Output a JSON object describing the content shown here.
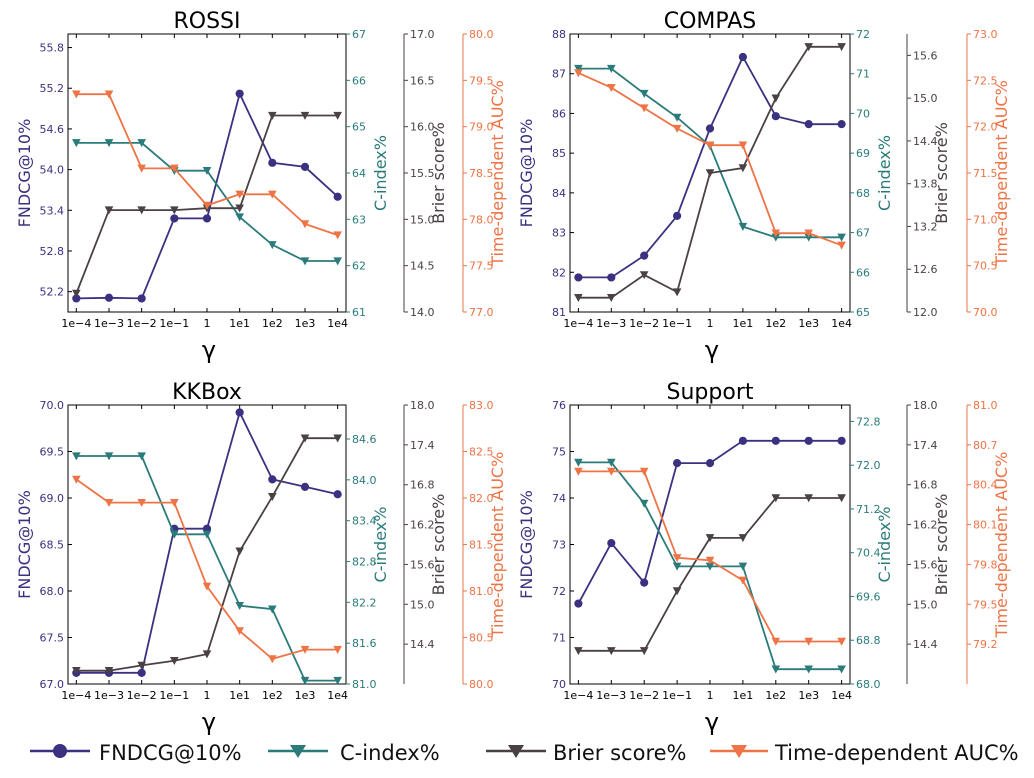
{
  "colors": {
    "fndcg": "#3a3181",
    "cindex": "#2a7b7a",
    "brier": "#4a4144",
    "auc": "#ee7345"
  },
  "legend": {
    "fndcg": "FNDCG@10%",
    "cindex": "C-index%",
    "brier": "Brier score%",
    "auc": "Time-dependent AUC%"
  },
  "chart_data": [
    {
      "type": "line",
      "title": "ROSSI",
      "xlabel": "γ",
      "x_ticks": [
        "1e−4",
        "1e−3",
        "1e−2",
        "1e−1",
        "1",
        "1e1",
        "1e2",
        "1e3",
        "1e4"
      ],
      "axes": [
        {
          "key": "fndcg",
          "label": "FNDCG@10%",
          "lim": [
            51.9,
            56.0
          ],
          "ticks": [
            52.2,
            52.8,
            53.4,
            54.0,
            54.6,
            55.2,
            55.8
          ],
          "tick_labels": [
            "52.2",
            "52.8",
            "53.4",
            "54.0",
            "54.6",
            "55.2",
            "55.8"
          ]
        },
        {
          "key": "cindex",
          "label": "C-index%",
          "lim": [
            61,
            67
          ],
          "ticks": [
            61,
            62,
            63,
            64,
            65,
            66,
            67
          ],
          "tick_labels": [
            "61",
            "62",
            "63",
            "64",
            "65",
            "66",
            "67"
          ]
        },
        {
          "key": "brier",
          "label": "Brier score%",
          "lim": [
            14.0,
            17.0
          ],
          "ticks": [
            14.0,
            14.5,
            15.0,
            15.5,
            16.0,
            16.5,
            17.0
          ],
          "tick_labels": [
            "14.0",
            "14.5",
            "15.0",
            "15.5",
            "16.0",
            "16.5",
            "17.0"
          ]
        },
        {
          "key": "auc",
          "label": "Time-dependent AUC%",
          "lim": [
            77.0,
            80.0
          ],
          "ticks": [
            77.0,
            77.5,
            78.0,
            78.5,
            79.0,
            79.5,
            80.0
          ],
          "tick_labels": [
            "77.0",
            "77.5",
            "78.0",
            "78.5",
            "79.0",
            "79.5",
            "80.0"
          ]
        }
      ],
      "series": [
        {
          "name": "FNDCG@10%",
          "key": "fndcg",
          "values": [
            52.1,
            52.11,
            52.1,
            53.28,
            53.28,
            55.12,
            54.1,
            54.04,
            53.6
          ]
        },
        {
          "name": "C-index%",
          "key": "cindex",
          "values": [
            64.65,
            64.65,
            64.65,
            64.05,
            64.05,
            63.05,
            62.45,
            62.1,
            62.1
          ]
        },
        {
          "name": "Brier score%",
          "key": "brier",
          "values": [
            14.2,
            15.1,
            15.1,
            15.1,
            15.12,
            15.12,
            16.12,
            16.12,
            16.12
          ]
        },
        {
          "name": "Time-dependent AUC%",
          "key": "auc",
          "values": [
            79.35,
            79.35,
            78.55,
            78.55,
            78.15,
            78.27,
            78.27,
            77.95,
            77.83
          ]
        }
      ]
    },
    {
      "type": "line",
      "title": "COMPAS",
      "xlabel": "γ",
      "x_ticks": [
        "1e−4",
        "1e−3",
        "1e−2",
        "1e−1",
        "1",
        "1e1",
        "1e2",
        "1e3",
        "1e4"
      ],
      "axes": [
        {
          "key": "fndcg",
          "label": "FNDCG@10%",
          "lim": [
            81,
            88
          ],
          "ticks": [
            81,
            82,
            83,
            84,
            85,
            86,
            87,
            88
          ],
          "tick_labels": [
            "81",
            "82",
            "83",
            "84",
            "85",
            "86",
            "87",
            "88"
          ]
        },
        {
          "key": "cindex",
          "label": "C-index%",
          "lim": [
            65,
            72
          ],
          "ticks": [
            65,
            66,
            67,
            68,
            69,
            70,
            71,
            72
          ],
          "tick_labels": [
            "65",
            "66",
            "67",
            "68",
            "69",
            "70",
            "71",
            "72"
          ]
        },
        {
          "key": "brier",
          "label": "Brier score%",
          "lim": [
            12.0,
            15.9
          ],
          "ticks": [
            12.0,
            12.6,
            13.2,
            13.8,
            14.4,
            15.0,
            15.6
          ],
          "tick_labels": [
            "12.0",
            "12.6",
            "13.2",
            "13.8",
            "14.4",
            "15.0",
            "15.6"
          ]
        },
        {
          "key": "auc",
          "label": "Time-dependent AUC%",
          "lim": [
            70.0,
            73.0
          ],
          "ticks": [
            70.0,
            70.5,
            71.0,
            71.5,
            72.0,
            72.5,
            73.0
          ],
          "tick_labels": [
            "70.0",
            "70.5",
            "71.0",
            "71.5",
            "72.0",
            "72.5",
            "73.0"
          ]
        }
      ],
      "series": [
        {
          "name": "FNDCG@10%",
          "key": "fndcg",
          "values": [
            81.87,
            81.87,
            82.42,
            83.42,
            85.62,
            87.42,
            85.93,
            85.73,
            85.73
          ]
        },
        {
          "name": "C-index%",
          "key": "cindex",
          "values": [
            71.13,
            71.13,
            70.5,
            69.9,
            69.18,
            67.15,
            66.88,
            66.88,
            66.88
          ]
        },
        {
          "name": "Brier score%",
          "key": "brier",
          "values": [
            12.2,
            12.2,
            12.52,
            12.28,
            13.95,
            14.02,
            15.0,
            15.72,
            15.72
          ]
        },
        {
          "name": "Time-dependent AUC%",
          "key": "auc",
          "values": [
            72.58,
            72.42,
            72.2,
            71.98,
            71.8,
            71.8,
            70.85,
            70.85,
            70.72
          ]
        }
      ]
    },
    {
      "type": "line",
      "title": "KKBox",
      "xlabel": "γ",
      "x_ticks": [
        "1e−4",
        "1e−3",
        "1e−2",
        "1e−1",
        "1",
        "1e1",
        "1e2",
        "1e3",
        "1e4"
      ],
      "axes": [
        {
          "key": "fndcg",
          "label": "FNDCG@10%",
          "lim": [
            67.0,
            70.0
          ],
          "ticks": [
            67.0,
            67.5,
            68.0,
            68.5,
            69.0,
            69.5,
            70.0
          ],
          "tick_labels": [
            "67.0",
            "67.5",
            "68.0",
            "68.5",
            "69.0",
            "69.5",
            "70.0"
          ]
        },
        {
          "key": "cindex",
          "label": "C-index%",
          "lim": [
            81.0,
            85.1
          ],
          "ticks": [
            81.0,
            81.6,
            82.2,
            82.8,
            83.4,
            84.0,
            84.6
          ],
          "tick_labels": [
            "81.0",
            "81.6",
            "82.2",
            "82.8",
            "83.4",
            "84.0",
            "84.6"
          ]
        },
        {
          "key": "brier",
          "label": "Brier score%",
          "lim": [
            13.8,
            18.0
          ],
          "ticks": [
            14.4,
            15.0,
            15.6,
            16.2,
            16.8,
            17.4,
            18.0
          ],
          "tick_labels": [
            "14.4",
            "15.0",
            "15.6",
            "16.2",
            "16.8",
            "17.4",
            "18.0"
          ]
        },
        {
          "key": "auc",
          "label": "Time-dependent AUC%",
          "lim": [
            80.0,
            83.0
          ],
          "ticks": [
            80.0,
            80.5,
            81.0,
            81.5,
            82.0,
            82.5,
            83.0
          ],
          "tick_labels": [
            "80.0",
            "80.5",
            "81.0",
            "81.5",
            "82.0",
            "82.5",
            "83.0"
          ]
        }
      ],
      "series": [
        {
          "name": "FNDCG@10%",
          "key": "fndcg",
          "values": [
            67.12,
            67.12,
            67.12,
            68.67,
            68.67,
            69.92,
            69.2,
            69.12,
            69.04
          ]
        },
        {
          "name": "C-index%",
          "key": "cindex",
          "values": [
            84.35,
            84.35,
            84.35,
            83.2,
            83.2,
            82.15,
            82.1,
            81.05,
            81.05
          ]
        },
        {
          "name": "Brier score%",
          "key": "brier",
          "values": [
            14.0,
            14.0,
            14.08,
            14.15,
            14.25,
            15.8,
            16.62,
            17.5,
            17.5
          ]
        },
        {
          "name": "Time-dependent AUC%",
          "key": "auc",
          "values": [
            82.2,
            81.95,
            81.95,
            81.95,
            81.05,
            80.57,
            80.27,
            80.37,
            80.37
          ]
        }
      ]
    },
    {
      "type": "line",
      "title": "Support",
      "xlabel": "γ",
      "x_ticks": [
        "1e−4",
        "1e−3",
        "1e−2",
        "1e−1",
        "1",
        "1e1",
        "1e2",
        "1e3",
        "1e4"
      ],
      "axes": [
        {
          "key": "fndcg",
          "label": "FNDCG@10%",
          "lim": [
            70,
            76
          ],
          "ticks": [
            70,
            71,
            72,
            73,
            74,
            75,
            76
          ],
          "tick_labels": [
            "70",
            "71",
            "72",
            "73",
            "74",
            "75",
            "76"
          ]
        },
        {
          "key": "cindex",
          "label": "C-index%",
          "lim": [
            68.0,
            73.1
          ],
          "ticks": [
            68.0,
            68.8,
            69.6,
            70.4,
            71.2,
            72.0,
            72.8
          ],
          "tick_labels": [
            "68.0",
            "68.8",
            "69.6",
            "70.4",
            "71.2",
            "72.0",
            "72.8"
          ]
        },
        {
          "key": "brier",
          "label": "Brier score%",
          "lim": [
            13.8,
            18.0
          ],
          "ticks": [
            14.4,
            15.0,
            15.6,
            16.2,
            16.8,
            17.4,
            18.0
          ],
          "tick_labels": [
            "14.4",
            "15.0",
            "15.6",
            "16.2",
            "16.8",
            "17.4",
            "18.0"
          ]
        },
        {
          "key": "auc",
          "label": "Time-dependent AUC%",
          "lim": [
            78.9,
            81.0
          ],
          "ticks": [
            79.2,
            79.5,
            79.8,
            80.1,
            80.4,
            80.7,
            81.0
          ],
          "tick_labels": [
            "79.2",
            "79.5",
            "79.8",
            "80.1",
            "80.4",
            "80.7",
            "81.0"
          ]
        }
      ],
      "series": [
        {
          "name": "FNDCG@10%",
          "key": "fndcg",
          "values": [
            71.73,
            73.03,
            72.18,
            74.75,
            74.75,
            75.23,
            75.23,
            75.23,
            75.23
          ]
        },
        {
          "name": "C-index%",
          "key": "cindex",
          "values": [
            72.05,
            72.05,
            71.3,
            70.15,
            70.15,
            70.15,
            68.27,
            68.27,
            68.27
          ]
        },
        {
          "name": "Brier score%",
          "key": "brier",
          "values": [
            14.3,
            14.3,
            14.3,
            15.2,
            16.0,
            16.0,
            16.6,
            16.6,
            16.6
          ]
        },
        {
          "name": "Time-dependent AUC%",
          "key": "auc",
          "values": [
            80.5,
            80.5,
            80.5,
            79.85,
            79.83,
            79.68,
            79.22,
            79.22,
            79.22
          ]
        }
      ]
    }
  ]
}
